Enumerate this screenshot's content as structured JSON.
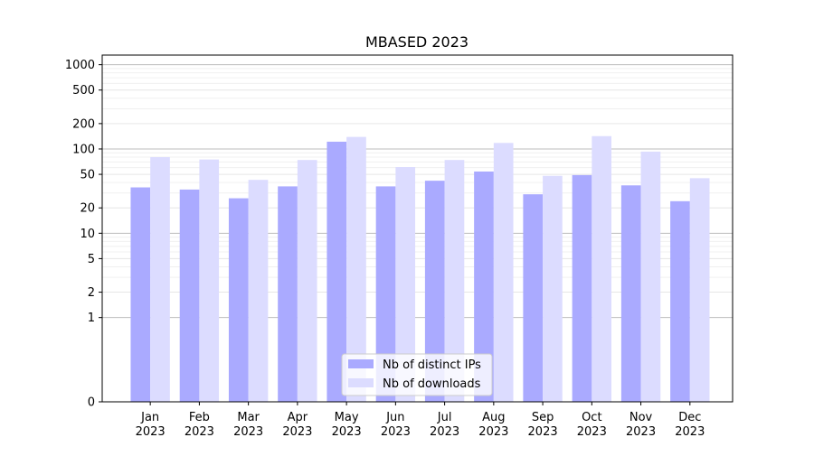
{
  "chart_data": {
    "type": "bar",
    "title": "MBASED 2023",
    "xlabel": "",
    "ylabel": "",
    "yscale": "symlog",
    "ylim": [
      0,
      1300
    ],
    "ytick_labels": [
      "0",
      "1",
      "2",
      "5",
      "10",
      "20",
      "50",
      "100",
      "200",
      "500",
      "1000"
    ],
    "ytick_values": [
      0,
      1,
      2,
      5,
      10,
      20,
      50,
      100,
      200,
      500,
      1000
    ],
    "categories": [
      {
        "month": "Jan",
        "year": "2023"
      },
      {
        "month": "Feb",
        "year": "2023"
      },
      {
        "month": "Mar",
        "year": "2023"
      },
      {
        "month": "Apr",
        "year": "2023"
      },
      {
        "month": "May",
        "year": "2023"
      },
      {
        "month": "Jun",
        "year": "2023"
      },
      {
        "month": "Jul",
        "year": "2023"
      },
      {
        "month": "Aug",
        "year": "2023"
      },
      {
        "month": "Sep",
        "year": "2023"
      },
      {
        "month": "Oct",
        "year": "2023"
      },
      {
        "month": "Nov",
        "year": "2023"
      },
      {
        "month": "Dec",
        "year": "2023"
      }
    ],
    "series": [
      {
        "name": "Nb of distinct IPs",
        "color": "#aaaaff",
        "values": [
          35,
          33,
          26,
          36,
          122,
          36,
          42,
          54,
          29,
          49,
          37,
          24
        ]
      },
      {
        "name": "Nb of downloads",
        "color": "#dcdcff",
        "values": [
          80,
          75,
          43,
          74,
          139,
          61,
          74,
          118,
          48,
          142,
          93,
          45
        ]
      }
    ],
    "grid": true,
    "legend_position": "bottom-center"
  }
}
